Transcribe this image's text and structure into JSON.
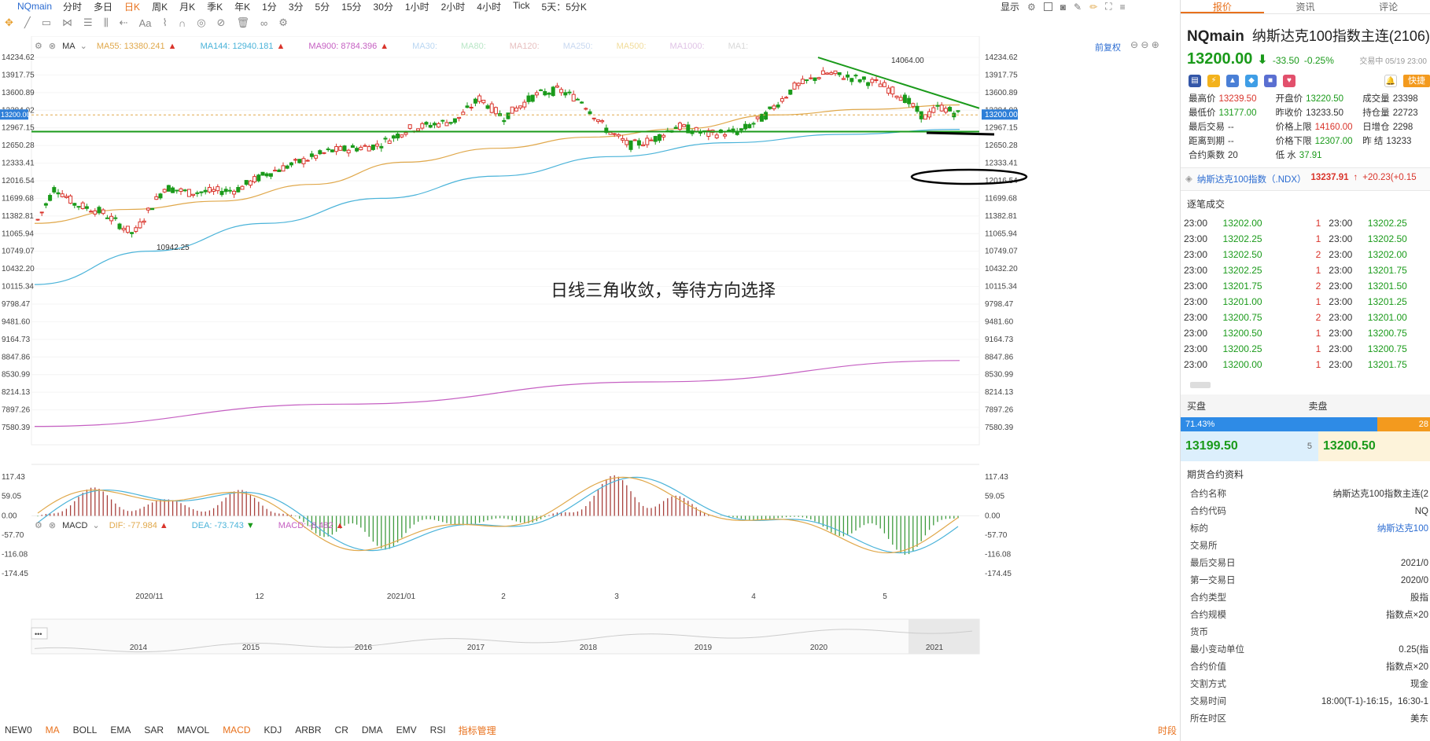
{
  "toolbar": {
    "symbol": "NQmain",
    "timeframes": [
      "分时",
      "多日",
      "日K",
      "周K",
      "月K",
      "季K",
      "年K",
      "1分",
      "3分",
      "5分",
      "15分",
      "30分",
      "1小时",
      "2小时",
      "4小时",
      "Tick",
      "5天：5分K"
    ],
    "active_timeframe": "日K",
    "display_label": "显示"
  },
  "ma_legend": {
    "label": "MA",
    "items": [
      {
        "text": "MA55: 13380.241",
        "color": "#e0a84b",
        "arrow": "▲"
      },
      {
        "text": "MA144: 12940.181",
        "color": "#4ab3d9",
        "arrow": "▲"
      },
      {
        "text": "MA900: 8784.396",
        "color": "#c55fc2",
        "arrow": "▲"
      },
      {
        "text": "MA30:",
        "color": "#b9d6f2",
        "arrow": ""
      },
      {
        "text": "MA80:",
        "color": "#b9e6c6",
        "arrow": ""
      },
      {
        "text": "MA120:",
        "color": "#e7c0c0",
        "arrow": ""
      },
      {
        "text": "MA250:",
        "color": "#c8d8f0",
        "arrow": ""
      },
      {
        "text": "MA500:",
        "color": "#f1dc9a",
        "arrow": ""
      },
      {
        "text": "MA1000:",
        "color": "#e0c4e6",
        "arrow": ""
      },
      {
        "text": "MA1:",
        "color": "#d8d8d8",
        "arrow": ""
      }
    ],
    "adjust_label": "前复权"
  },
  "macd_legend": {
    "label": "MACD",
    "dif": "DIF: -77.984",
    "dea": "DEA: -73.743",
    "macd": "MACD: -8.482"
  },
  "y_axis_main": [
    "14234.62",
    "13917.75",
    "13600.89",
    "13284.02",
    "12967.15",
    "12650.28",
    "12333.41",
    "12016.54",
    "11699.68",
    "11382.81",
    "11065.94",
    "10749.07",
    "10432.20",
    "10115.34",
    "9798.47",
    "9481.60",
    "9164.73",
    "8847.86",
    "8530.99",
    "8214.13",
    "7897.26",
    "7580.39"
  ],
  "current_price_tag": "13200.00",
  "y_axis_macd": [
    "117.43",
    "59.05",
    "0.00",
    "-57.70",
    "-116.08",
    "-174.45"
  ],
  "x_axis_dates": [
    "2020/11",
    "12",
    "2021/01",
    "2",
    "3",
    "4",
    "5"
  ],
  "overview_years": [
    "2014",
    "2015",
    "2016",
    "2017",
    "2018",
    "2019",
    "2020",
    "2021"
  ],
  "chart_marks": {
    "high": "14064.00",
    "low": "10942.25"
  },
  "annotation": "日线三角收敛，等待方向选择",
  "indicator_bar": {
    "items": [
      "NEW0",
      "MA",
      "BOLL",
      "EMA",
      "SAR",
      "MAVOL",
      "MACD",
      "KDJ",
      "ARBR",
      "CR",
      "DMA",
      "EMV",
      "RSI"
    ],
    "active": [
      "MA",
      "MACD"
    ],
    "manage": "指标管理",
    "right": "时段"
  },
  "chart_data": {
    "type": "line",
    "y_range": [
      7580.39,
      14234.62
    ],
    "series": [
      {
        "name": "MA55",
        "color": "#e0a84b",
        "values": [
          11250,
          11500,
          11650,
          11950,
          12350,
          12600,
          12800,
          12950,
          13200,
          13300,
          13380
        ]
      },
      {
        "name": "MA144",
        "color": "#4ab3d9",
        "values": [
          10150,
          10750,
          11250,
          11700,
          12100,
          12450,
          12700,
          12850,
          12940
        ]
      },
      {
        "name": "MA900",
        "color": "#c55fc2",
        "values": [
          7600,
          8000,
          8400,
          8784
        ]
      }
    ],
    "annotations": [
      {
        "type": "trendline",
        "color": "#1a9a1a",
        "from": 14234,
        "to": 13320
      },
      {
        "type": "horizontal",
        "color": "#1a9a1a",
        "value": 12900
      }
    ]
  },
  "panel": {
    "tabs": [
      "报价",
      "资讯",
      "评论"
    ],
    "active_tab": "报价",
    "symbol": "NQmain",
    "name": "纳斯达克100指数主连(2106)",
    "price": "13200.00",
    "arrow": "⬇",
    "change": "-33.50",
    "pct": "-0.25%",
    "status": "交易中 05/19 23:00",
    "fast_label": "快捷",
    "quotes": [
      [
        {
          "k": "最高价",
          "v": "13239.50",
          "c": "r"
        },
        {
          "k": "开盘价",
          "v": "13220.50",
          "c": "g"
        },
        {
          "k": "成交量",
          "v": "23398",
          "c": ""
        }
      ],
      [
        {
          "k": "最低价",
          "v": "13177.00",
          "c": "g"
        },
        {
          "k": "昨收价",
          "v": "13233.50",
          "c": ""
        },
        {
          "k": "持仓量",
          "v": "22723",
          "c": ""
        }
      ],
      [
        {
          "k": "最后交易",
          "v": "--",
          "c": ""
        },
        {
          "k": "价格上限",
          "v": "14160.00",
          "c": "r"
        },
        {
          "k": "日增仓",
          "v": "2298",
          "c": ""
        }
      ],
      [
        {
          "k": "距离到期",
          "v": "--",
          "c": ""
        },
        {
          "k": "价格下限",
          "v": "12307.00",
          "c": "g"
        },
        {
          "k": "昨 结",
          "v": "13233",
          "c": ""
        }
      ],
      [
        {
          "k": "合约乘数",
          "v": "20",
          "c": ""
        },
        {
          "k": "低 水",
          "v": "37.91",
          "c": "g"
        },
        {
          "k": "",
          "v": "",
          "c": ""
        }
      ]
    ],
    "index_name": "纳斯达克100指数（.NDX）",
    "index_value": "13237.91",
    "index_change": "+20.23(+0.15",
    "trades_title": "逐笔成交",
    "trades": [
      [
        "23:00",
        "13202.00",
        "1",
        "23:00",
        "13202.25"
      ],
      [
        "23:00",
        "13202.25",
        "1",
        "23:00",
        "13202.50"
      ],
      [
        "23:00",
        "13202.50",
        "2",
        "23:00",
        "13202.00"
      ],
      [
        "23:00",
        "13202.25",
        "1",
        "23:00",
        "13201.75"
      ],
      [
        "23:00",
        "13201.75",
        "2",
        "23:00",
        "13201.50"
      ],
      [
        "23:00",
        "13201.00",
        "1",
        "23:00",
        "13201.25"
      ],
      [
        "23:00",
        "13200.75",
        "2",
        "23:00",
        "13201.00"
      ],
      [
        "23:00",
        "13200.50",
        "1",
        "23:00",
        "13200.75"
      ],
      [
        "23:00",
        "13200.25",
        "1",
        "23:00",
        "13200.75"
      ],
      [
        "23:00",
        "13200.00",
        "1",
        "23:00",
        "13201.75"
      ]
    ],
    "buy_label": "买盘",
    "sell_label": "卖盘",
    "buy_pct": "71.43%",
    "sell_pct": "28",
    "bid": "13199.50",
    "bid_qty": "5",
    "ask": "13200.50",
    "info_title": "期货合约资料",
    "info": [
      {
        "k": "合约名称",
        "v": "纳斯达克100指数主连(2"
      },
      {
        "k": "合约代码",
        "v": "NQ"
      },
      {
        "k": "标的",
        "v": "纳斯达克100"
      },
      {
        "k": "交易所",
        "v": ""
      },
      {
        "k": "最后交易日",
        "v": "2021/0"
      },
      {
        "k": "第一交易日",
        "v": "2020/0"
      },
      {
        "k": "合约类型",
        "v": "股指"
      },
      {
        "k": "合约规模",
        "v": "指数点×20"
      },
      {
        "k": "货币",
        "v": ""
      },
      {
        "k": "最小变动单位",
        "v": "0.25(指"
      },
      {
        "k": "合约价值",
        "v": "指数点×20"
      },
      {
        "k": "交割方式",
        "v": "现金"
      },
      {
        "k": "交易时间",
        "v": "18:00(T-1)-16:15，16:30-1"
      },
      {
        "k": "所在时区",
        "v": "美东"
      }
    ]
  }
}
